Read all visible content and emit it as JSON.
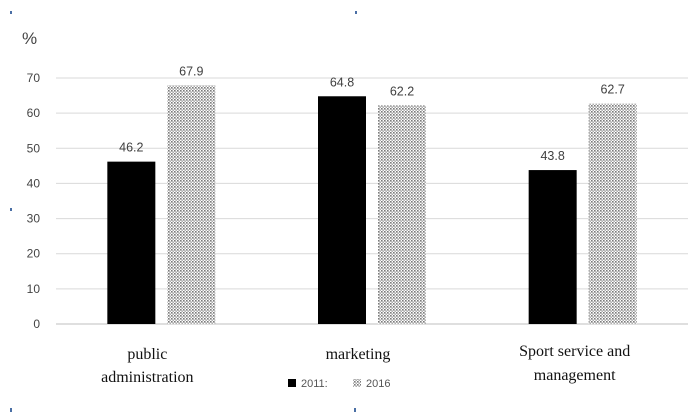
{
  "chart_data": {
    "type": "bar",
    "ylabel": "%",
    "categories": [
      "public administration",
      "marketing",
      "Sport service and management"
    ],
    "category_lines": [
      [
        "public",
        "administration"
      ],
      [
        "marketing"
      ],
      [
        "Sport service and",
        "management"
      ]
    ],
    "series": [
      {
        "name": "2011:",
        "values": [
          46.2,
          64.8,
          43.8
        ],
        "color": "#000000",
        "pattern": "solid"
      },
      {
        "name": "2016",
        "values": [
          67.9,
          62.2,
          62.7
        ],
        "color": "#b8b8b8",
        "pattern": "dotted"
      }
    ],
    "data_labels": [
      [
        "46.2",
        "64.8",
        "43.8"
      ],
      [
        "67.9",
        "62.2",
        "62.7"
      ]
    ],
    "ylim": [
      0,
      70
    ],
    "yticks": [
      0,
      10,
      20,
      30,
      40,
      50,
      60,
      70
    ],
    "grid": true,
    "legend_position": "bottom-center"
  }
}
